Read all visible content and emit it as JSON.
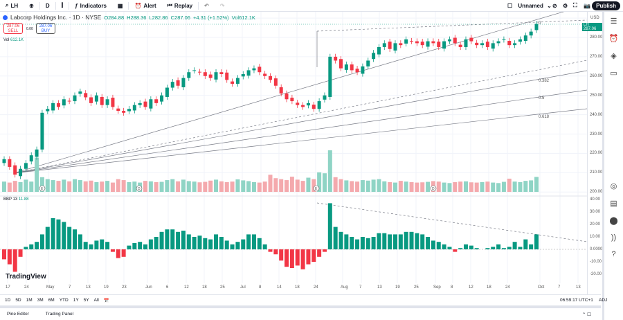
{
  "toolbar": {
    "symbol": "LH",
    "interval": "D",
    "indicators": "Indicators",
    "alert": "Alert",
    "replay": "Replay",
    "layout_name": "Unnamed",
    "publish": "Publish"
  },
  "legend": {
    "title": "Labcorp Holdings Inc. · 1D · NYSE",
    "open": "O284.88",
    "high": "H288.36",
    "low": "L282.86",
    "close": "C287.06",
    "change": "+4.31 (+1.52%)",
    "vol": "Vol612.1K",
    "sell_price": "287.06",
    "sell_label": "SELL",
    "spread": "0.00",
    "buy_price": "287.06",
    "buy_label": "BUY",
    "volume_label": "Vol",
    "volume_value": "612.1K",
    "bbp_label": "BBP 13",
    "bbp_value": "11.88"
  },
  "colors": {
    "up": "#089981",
    "down": "#f23645",
    "up_vol": "#8fd4c5",
    "down_vol": "#f4a9ad"
  },
  "price_axis": {
    "currency": "USD",
    "last_tag": "LH",
    "last_value": "287.06",
    "ticks": [
      "280.00",
      "270.00",
      "260.00",
      "250.00",
      "240.00",
      "230.00",
      "220.00",
      "210.00",
      "200.00"
    ]
  },
  "bbp_axis": {
    "ticks": [
      "40.00",
      "30.00",
      "20.00",
      "10.00",
      "0.0000",
      "-10.00",
      "-20.00"
    ]
  },
  "fib_labels": [
    "0",
    "0.382",
    "0.5",
    "0.618"
  ],
  "events": [
    "E",
    "D",
    "E",
    "D"
  ],
  "date_ticks": [
    "17",
    "24",
    "May",
    "7",
    "13",
    "19",
    "23",
    "Jun",
    "6",
    "12",
    "18",
    "25",
    "Jul",
    "8",
    "14",
    "18",
    "24",
    "Aug",
    "7",
    "13",
    "19",
    "25",
    "Sep",
    "8",
    "12",
    "18",
    "24",
    "Oct",
    "7",
    "13"
  ],
  "ranges": [
    "1D",
    "5D",
    "1M",
    "3M",
    "6M",
    "YTD",
    "1Y",
    "5Y",
    "All"
  ],
  "time": "06:59:17 UTC+1",
  "adj": "ADJ",
  "panels": {
    "pine": "Pine Editor",
    "trading": "Trading Panel"
  },
  "watermark": "TradingView",
  "chart_data": {
    "type": "candlestick",
    "ylim": [
      200,
      290
    ],
    "close": [
      217,
      213,
      209,
      212,
      215,
      219,
      222,
      241,
      243,
      246,
      244,
      248,
      247,
      250,
      252,
      249,
      246,
      250,
      245,
      248,
      244,
      242,
      241,
      243,
      245,
      246,
      244,
      248,
      246,
      250,
      254,
      257,
      255,
      259,
      262,
      263,
      262,
      260,
      259,
      262,
      261,
      258,
      256,
      259,
      261,
      263,
      264,
      262,
      260,
      258,
      255,
      251,
      248,
      247,
      245,
      244,
      246,
      243,
      247,
      250,
      270,
      268,
      264,
      266,
      263,
      262,
      265,
      268,
      272,
      275,
      277,
      274,
      277,
      276,
      279,
      278,
      277,
      276,
      278,
      277,
      275,
      278,
      279,
      277,
      275,
      279,
      278,
      276,
      277,
      275,
      277,
      278,
      279,
      276,
      277,
      279,
      281,
      283,
      287
    ],
    "volume": [
      420,
      380,
      450,
      400,
      500,
      420,
      1400,
      600,
      520,
      480,
      450,
      500,
      430,
      520,
      480,
      430,
      460,
      400,
      420,
      450,
      380,
      520,
      480,
      400,
      420,
      380,
      450,
      430,
      400,
      410,
      480,
      520,
      430,
      500,
      440,
      420,
      390,
      410,
      460,
      500,
      430,
      400,
      420,
      510,
      470,
      440,
      400,
      380,
      420,
      700,
      560,
      520,
      480,
      620,
      500,
      450,
      580,
      520,
      800,
      760,
      1700,
      600,
      520,
      470,
      440,
      420,
      480,
      460,
      500,
      520,
      430,
      400,
      380,
      450,
      420,
      400,
      380,
      390,
      410,
      440,
      420,
      380,
      360,
      400,
      420,
      430,
      390,
      380,
      400,
      420,
      380,
      360,
      410,
      540,
      420,
      400,
      450,
      470,
      612
    ],
    "bbp": [
      -8,
      -12,
      -18,
      -6,
      2,
      4,
      6,
      12,
      18,
      25,
      24,
      22,
      18,
      16,
      12,
      6,
      4,
      7,
      8,
      6,
      -2,
      -7,
      -6,
      3,
      5,
      6,
      4,
      8,
      10,
      14,
      16,
      16,
      14,
      15,
      12,
      10,
      11,
      9,
      8,
      12,
      10,
      7,
      4,
      6,
      8,
      12,
      12,
      9,
      4,
      -2,
      -4,
      -9,
      -14,
      -15,
      -13,
      -16,
      -12,
      -10,
      -6,
      -2,
      37,
      18,
      14,
      12,
      10,
      8,
      10,
      9,
      10,
      13,
      13,
      12,
      12,
      12,
      14,
      14,
      13,
      12,
      10,
      7,
      6,
      4,
      2,
      -2,
      1,
      4,
      3,
      1,
      0,
      1,
      2,
      4,
      1,
      2,
      6,
      2,
      8,
      4,
      12
    ]
  }
}
